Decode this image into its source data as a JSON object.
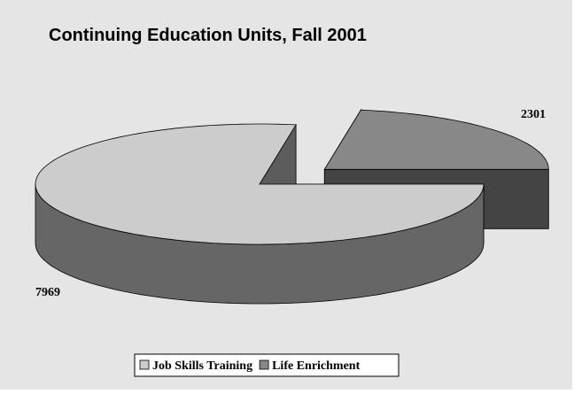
{
  "chart_data": {
    "type": "pie3d",
    "title": "Continuing Education Units, Fall 2001",
    "categories": [
      "Job Skills Training",
      "Life Enrichment"
    ],
    "values": [
      7969,
      2301
    ],
    "colors": [
      "#cccccc",
      "#888888"
    ],
    "legend": "bottom"
  }
}
